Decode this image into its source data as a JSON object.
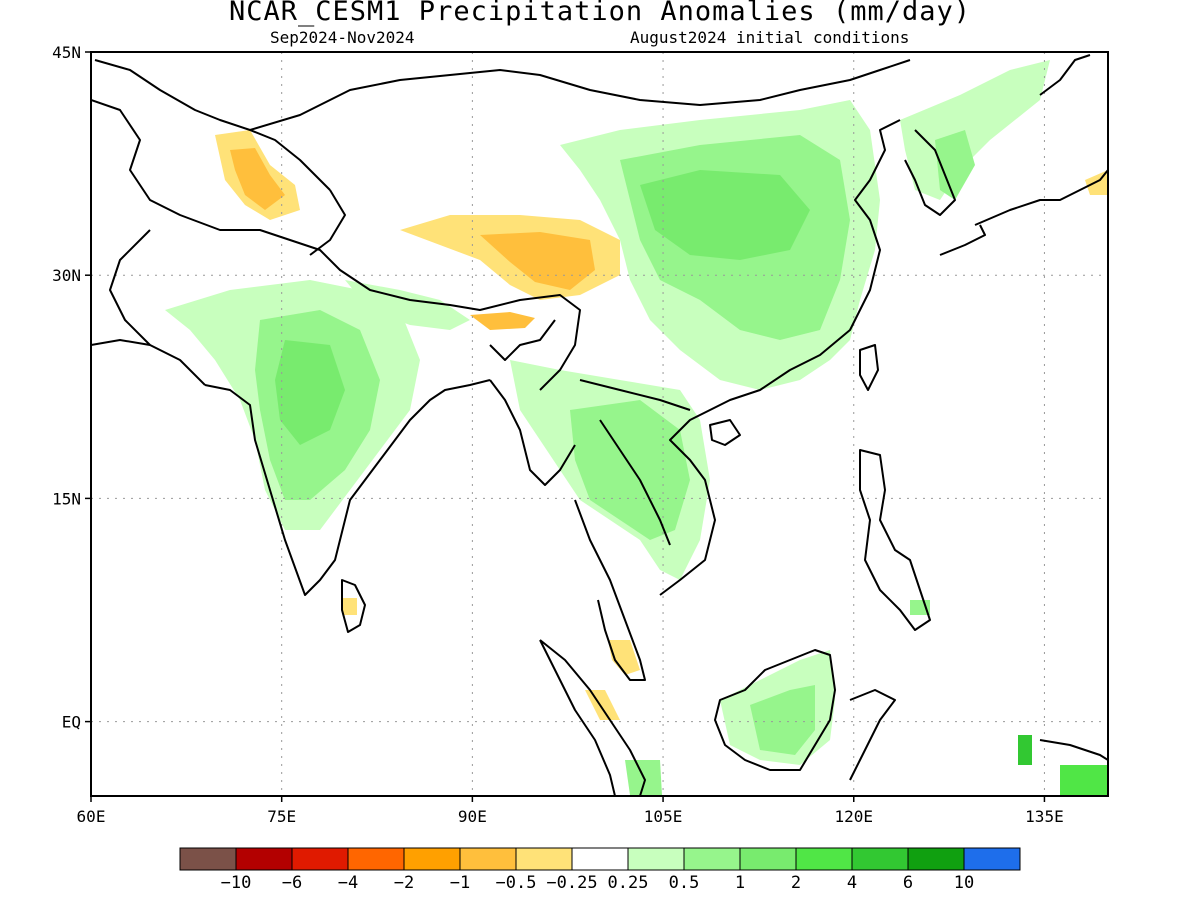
{
  "title": "NCAR_CESM1 Precipitation Anomalies (mm/day)",
  "subtitle_left": "Sep2024-Nov2024",
  "subtitle_right": "August2024 initial conditions",
  "map": {
    "lon_range": [
      60,
      140
    ],
    "lat_range": [
      -5,
      45
    ],
    "lat_ticks": [
      {
        "value": 45,
        "label": "45N"
      },
      {
        "value": 30,
        "label": "30N"
      },
      {
        "value": 15,
        "label": "15N"
      },
      {
        "value": 0,
        "label": "EQ"
      }
    ],
    "lon_ticks": [
      {
        "value": 60,
        "label": "60E"
      },
      {
        "value": 75,
        "label": "75E"
      },
      {
        "value": 90,
        "label": "90E"
      },
      {
        "value": 105,
        "label": "105E"
      },
      {
        "value": 120,
        "label": "120E"
      },
      {
        "value": 135,
        "label": "135E"
      }
    ],
    "grid": "dotted"
  },
  "colors": {
    "below_-10": "#7b5148",
    "-10_-6": "#b30000",
    "-6_-4": "#e01a00",
    "-4_-2": "#ff6600",
    "-2_-1": "#ffa000",
    "-1_-0.5": "#ffbf3c",
    "-0.5_-0.25": "#ffe278",
    "-0.25_0.25": "#ffffff",
    "0.25_0.5": "#c8ffbe",
    "0.5_1": "#96f58c",
    "1_2": "#78eb6e",
    "2_4": "#50e646",
    "4_6": "#32c832",
    "6_10": "#10a010",
    "above_10": "#1e6eeb"
  },
  "colorbar": {
    "boxes": [
      "#7b5148",
      "#b30000",
      "#e01a00",
      "#ff6600",
      "#ffa000",
      "#ffbf3c",
      "#ffe278",
      "#ffffff",
      "#c8ffbe",
      "#96f58c",
      "#78eb6e",
      "#50e646",
      "#32c832",
      "#10a010",
      "#1e6eeb"
    ],
    "labels": [
      "-10",
      "-6",
      "-4",
      "-2",
      "-1",
      "-0.5",
      "-0.25",
      "0.25",
      "0.5",
      "1",
      "2",
      "4",
      "6",
      "10"
    ]
  }
}
